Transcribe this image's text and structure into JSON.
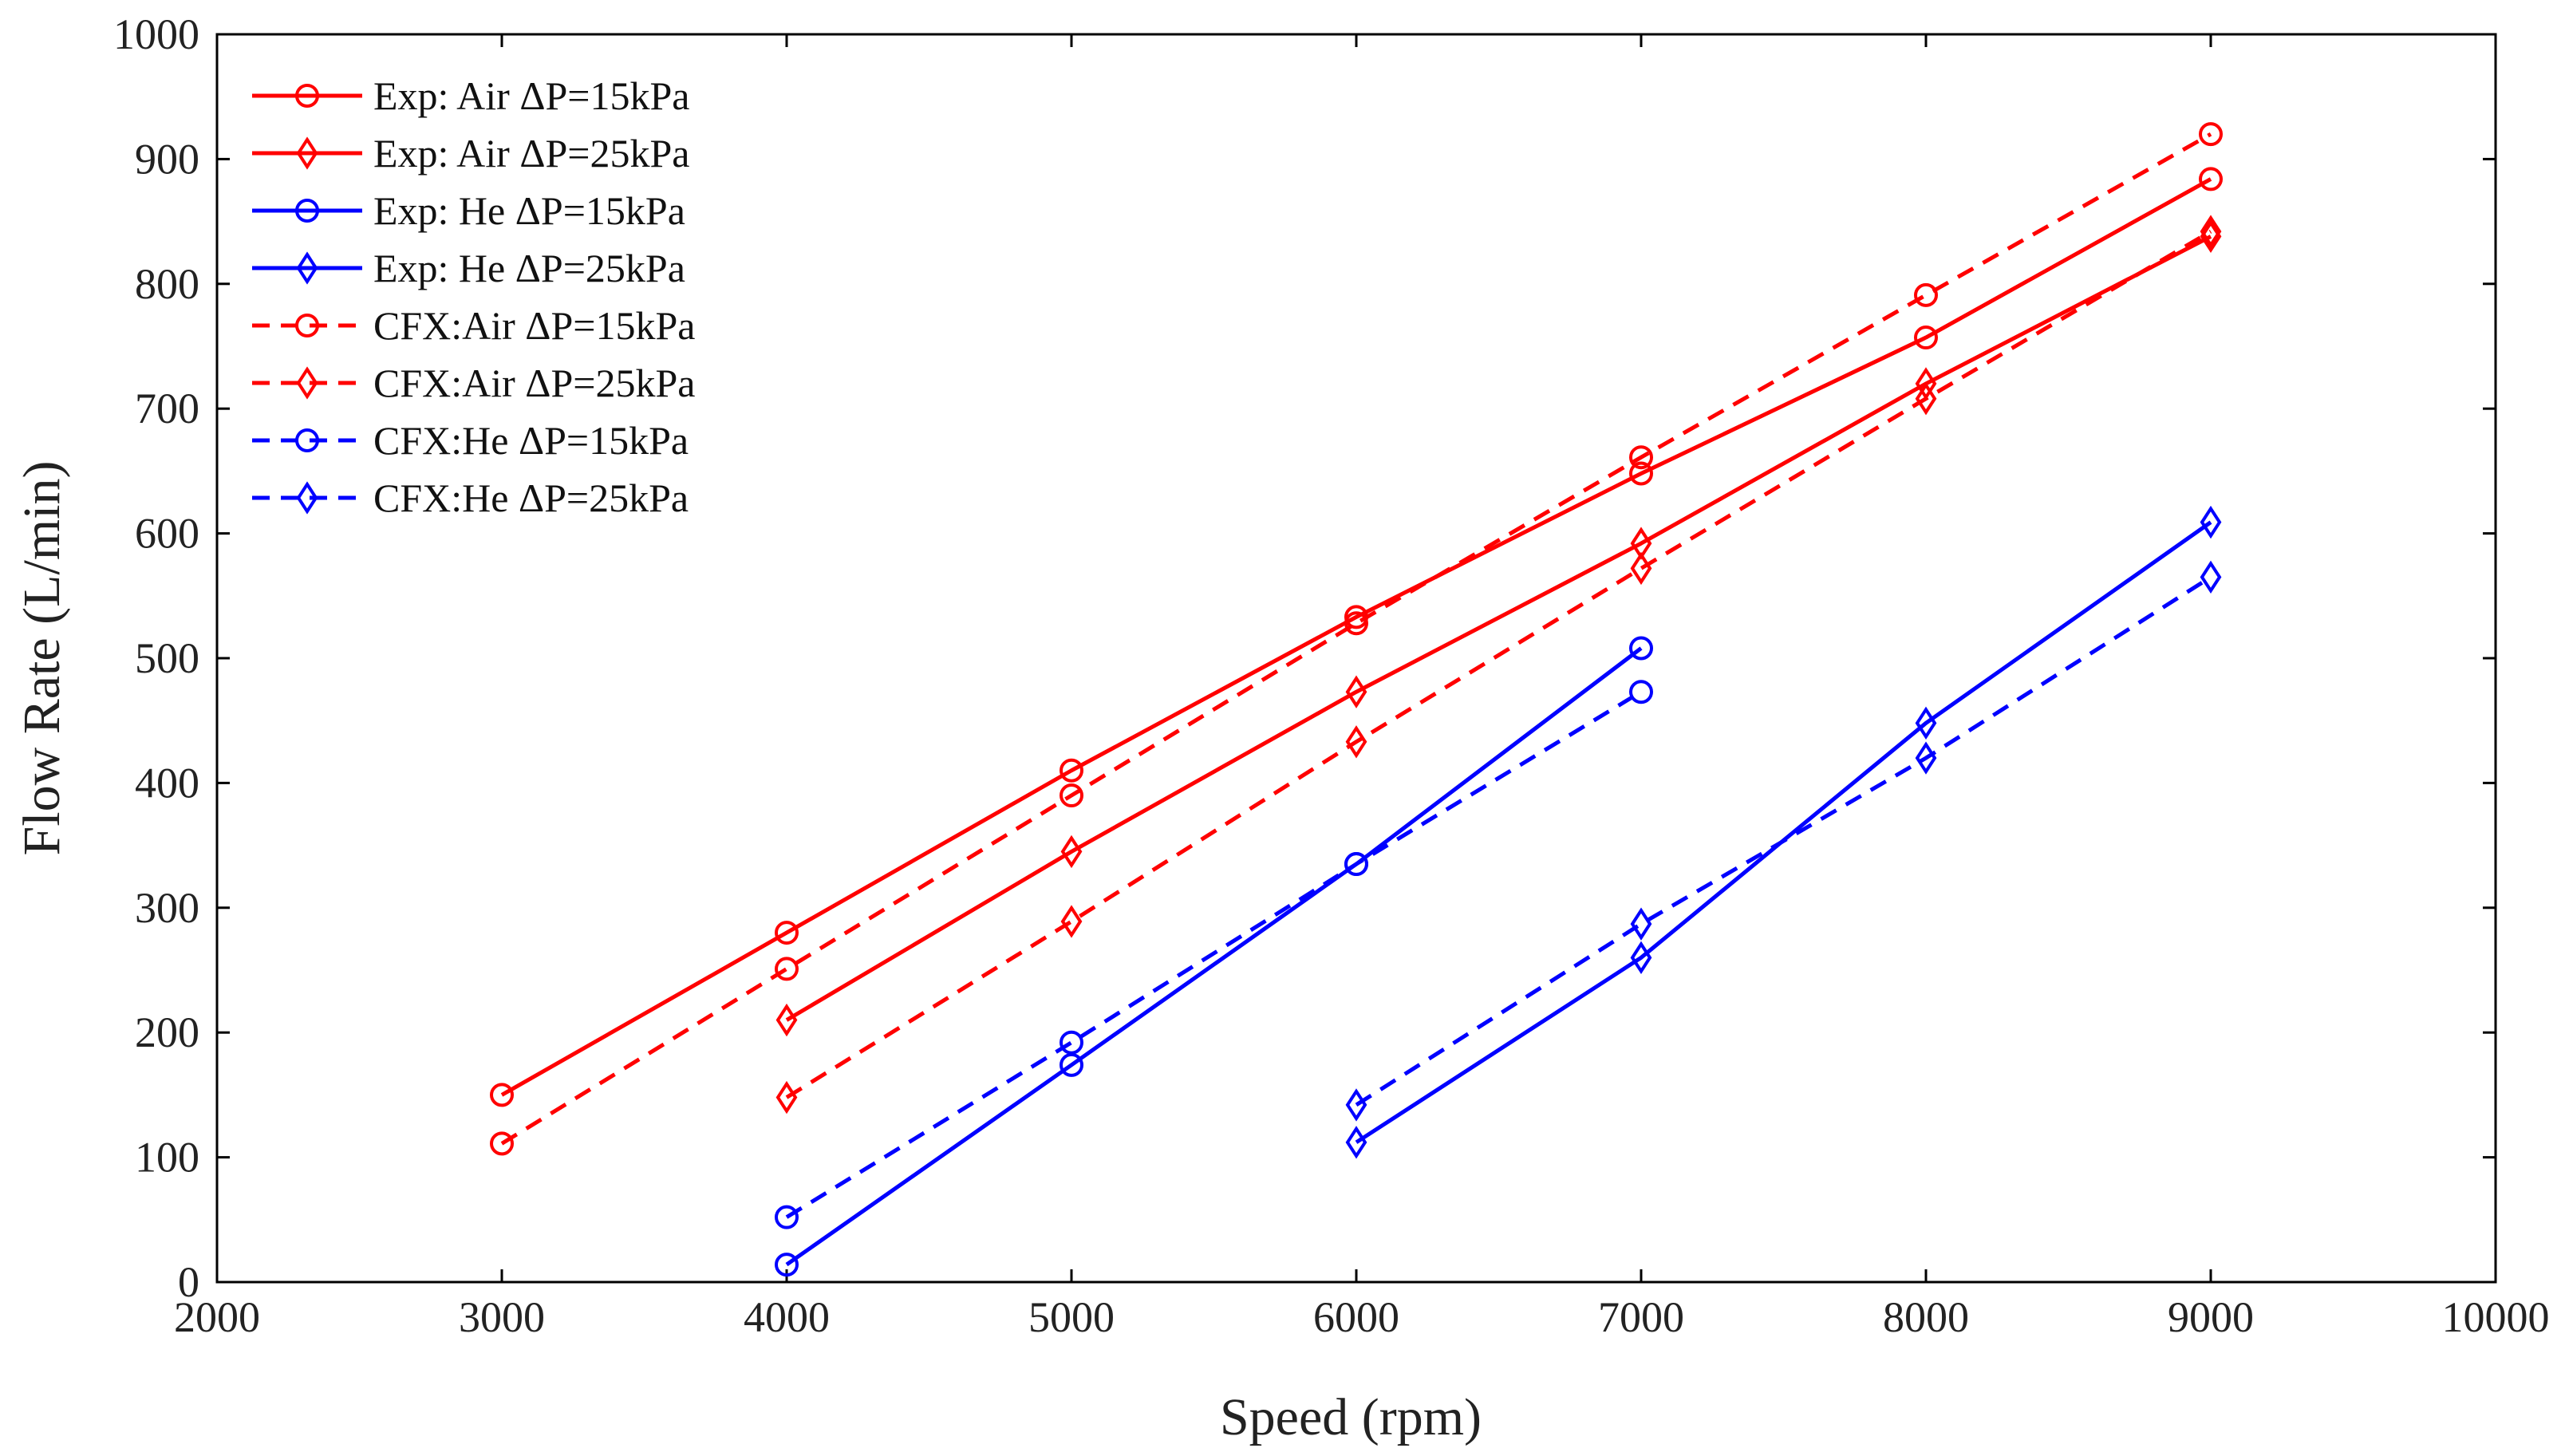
{
  "chart_data": {
    "type": "line",
    "title": "",
    "xlabel": "Speed (rpm)",
    "ylabel": "Flow Rate (L/min)",
    "xlim": [
      2000,
      10000
    ],
    "ylim": [
      0,
      1000
    ],
    "xticks": [
      "2000",
      "3000",
      "4000",
      "5000",
      "6000",
      "7000",
      "8000",
      "9000",
      "10000"
    ],
    "yticks": [
      "0",
      "100",
      "200",
      "300",
      "400",
      "500",
      "600",
      "700",
      "800",
      "900",
      "1000"
    ],
    "grid": false,
    "legend_position": "top-left",
    "colors": {
      "air": "#ff0000",
      "he": "#0000ff"
    },
    "series": [
      {
        "name": "Exp: Air ΔP=15kPa",
        "color": "#ff0000",
        "dashed": false,
        "marker": "circle",
        "x": [
          3000,
          4000,
          5000,
          6000,
          7000,
          8000,
          9000
        ],
        "y": [
          150,
          280,
          410,
          533,
          648,
          757,
          884
        ]
      },
      {
        "name": "Exp: Air ΔP=25kPa",
        "color": "#ff0000",
        "dashed": false,
        "marker": "diamond",
        "x": [
          4000,
          5000,
          6000,
          7000,
          8000,
          9000
        ],
        "y": [
          210,
          345,
          473,
          592,
          720,
          838
        ]
      },
      {
        "name": "Exp: He  ΔP=15kPa",
        "color": "#0000ff",
        "dashed": false,
        "marker": "circle",
        "x": [
          4000,
          5000,
          6000,
          7000
        ],
        "y": [
          14,
          174,
          335,
          508
        ]
      },
      {
        "name": "Exp: He  ΔP=25kPa",
        "color": "#0000ff",
        "dashed": false,
        "marker": "diamond",
        "x": [
          6000,
          7000,
          8000,
          9000
        ],
        "y": [
          112,
          260,
          448,
          609
        ]
      },
      {
        "name": "CFX:Air ΔP=15kPa",
        "color": "#ff0000",
        "dashed": true,
        "marker": "circle",
        "x": [
          3000,
          4000,
          5000,
          6000,
          7000,
          8000,
          9000
        ],
        "y": [
          111,
          251,
          390,
          528,
          661,
          791,
          920
        ]
      },
      {
        "name": "CFX:Air ΔP=25kPa",
        "color": "#ff0000",
        "dashed": true,
        "marker": "diamond",
        "x": [
          4000,
          5000,
          6000,
          7000,
          8000,
          9000
        ],
        "y": [
          148,
          289,
          433,
          572,
          708,
          842
        ]
      },
      {
        "name": "CFX:He  ΔP=15kPa",
        "color": "#0000ff",
        "dashed": true,
        "marker": "circle",
        "x": [
          4000,
          5000,
          6000,
          7000
        ],
        "y": [
          52,
          192,
          335,
          473
        ]
      },
      {
        "name": "CFX:He  ΔP=25kPa",
        "color": "#0000ff",
        "dashed": true,
        "marker": "diamond",
        "x": [
          6000,
          7000,
          8000,
          9000
        ],
        "y": [
          142,
          287,
          420,
          565
        ]
      }
    ]
  }
}
